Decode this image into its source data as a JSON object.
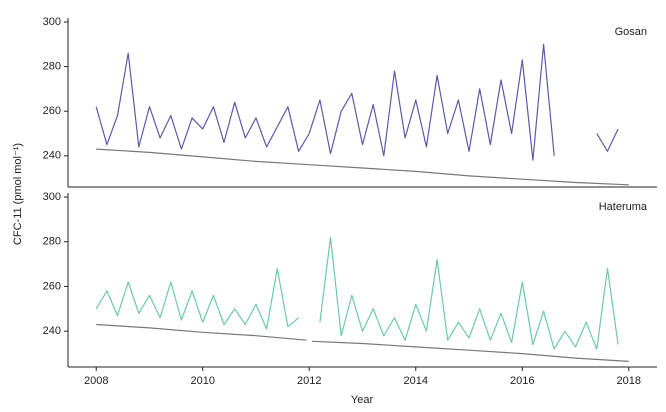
{
  "chart_data": [
    {
      "type": "line",
      "annotation": "Gosan",
      "ylabel": "CFC-11 (pmol mol⁻¹)",
      "xlim": [
        2007.47,
        2018.53
      ],
      "ylim": [
        226,
        300
      ],
      "yticks": [
        240,
        260,
        280,
        300
      ],
      "series": [
        {
          "color": "#5b5aa8",
          "x": [
            2008.0,
            2008.2,
            2008.4,
            2008.6,
            2008.8,
            2009.0,
            2009.2,
            2009.4,
            2009.6,
            2009.8,
            2010.0,
            2010.2,
            2010.4,
            2010.6,
            2010.8,
            2011.0,
            2011.2,
            2011.4,
            2011.6,
            2011.8,
            2012.0,
            2012.2,
            2012.4,
            2012.6,
            2012.8,
            2013.0,
            2013.2,
            2013.4,
            2013.6,
            2013.8,
            2014.0,
            2014.2,
            2014.4,
            2014.6,
            2014.8,
            2015.0,
            2015.2,
            2015.4,
            2015.6,
            2015.8,
            2016.0,
            2016.2,
            2016.4,
            2016.6,
            2016.8,
            2017.0,
            2017.2,
            2017.4,
            2017.6,
            2017.8
          ],
          "values": [
            262,
            245,
            258,
            286,
            244,
            262,
            248,
            258,
            243,
            257,
            252,
            262,
            246,
            264,
            248,
            257,
            244,
            253,
            262,
            242,
            250,
            265,
            241,
            260,
            268,
            245,
            263,
            240,
            278,
            248,
            265,
            244,
            276,
            250,
            265,
            242,
            270,
            245,
            274,
            250,
            283,
            238,
            290,
            240,
            null,
            null,
            null,
            250,
            242,
            252
          ]
        },
        {
          "color": "#777777",
          "x": [
            2008,
            2009,
            2010,
            2011,
            2012,
            2013,
            2014,
            2015,
            2016,
            2017,
            2018
          ],
          "values": [
            243,
            241.5,
            239.5,
            237.5,
            236,
            234.5,
            233,
            231,
            229.5,
            228,
            227
          ]
        }
      ]
    },
    {
      "type": "line",
      "annotation": "Hateruma",
      "xlabel": "Year",
      "xlim": [
        2007.47,
        2018.53
      ],
      "ylim": [
        224,
        300
      ],
      "yticks": [
        240,
        260,
        280,
        300
      ],
      "xticks": [
        2008,
        2010,
        2012,
        2014,
        2016,
        2018
      ],
      "series": [
        {
          "color": "#6cc9a3",
          "x": [
            2008.0,
            2008.2,
            2008.4,
            2008.6,
            2008.8,
            2009.0,
            2009.2,
            2009.4,
            2009.6,
            2009.8,
            2010.0,
            2010.2,
            2010.4,
            2010.6,
            2010.8,
            2011.0,
            2011.2,
            2011.4,
            2011.6,
            2011.8,
            2012.0,
            2012.2,
            2012.4,
            2012.6,
            2012.8,
            2013.0,
            2013.2,
            2013.4,
            2013.6,
            2013.8,
            2014.0,
            2014.2,
            2014.4,
            2014.6,
            2014.8,
            2015.0,
            2015.2,
            2015.4,
            2015.6,
            2015.8,
            2016.0,
            2016.2,
            2016.4,
            2016.6,
            2016.8,
            2017.0,
            2017.2,
            2017.4,
            2017.6,
            2017.8
          ],
          "values": [
            250,
            258,
            247,
            262,
            248,
            256,
            246,
            262,
            245,
            258,
            244,
            256,
            243,
            250,
            243,
            252,
            241,
            268,
            242,
            246,
            null,
            244,
            282,
            238,
            256,
            240,
            250,
            238,
            246,
            236,
            252,
            240,
            272,
            236,
            244,
            237,
            250,
            236,
            248,
            235,
            262,
            234,
            249,
            232,
            240,
            233,
            244,
            232,
            268,
            234
          ]
        },
        {
          "color": "#777777",
          "x": [
            2008,
            2009,
            2010,
            2011,
            2011.95,
            2012.0,
            2012.05,
            2013,
            2014,
            2015,
            2016,
            2017,
            2018
          ],
          "values": [
            243,
            241.5,
            239.5,
            238,
            236,
            null,
            235.5,
            234.5,
            233,
            231.5,
            230,
            228,
            226.5
          ]
        }
      ]
    }
  ]
}
